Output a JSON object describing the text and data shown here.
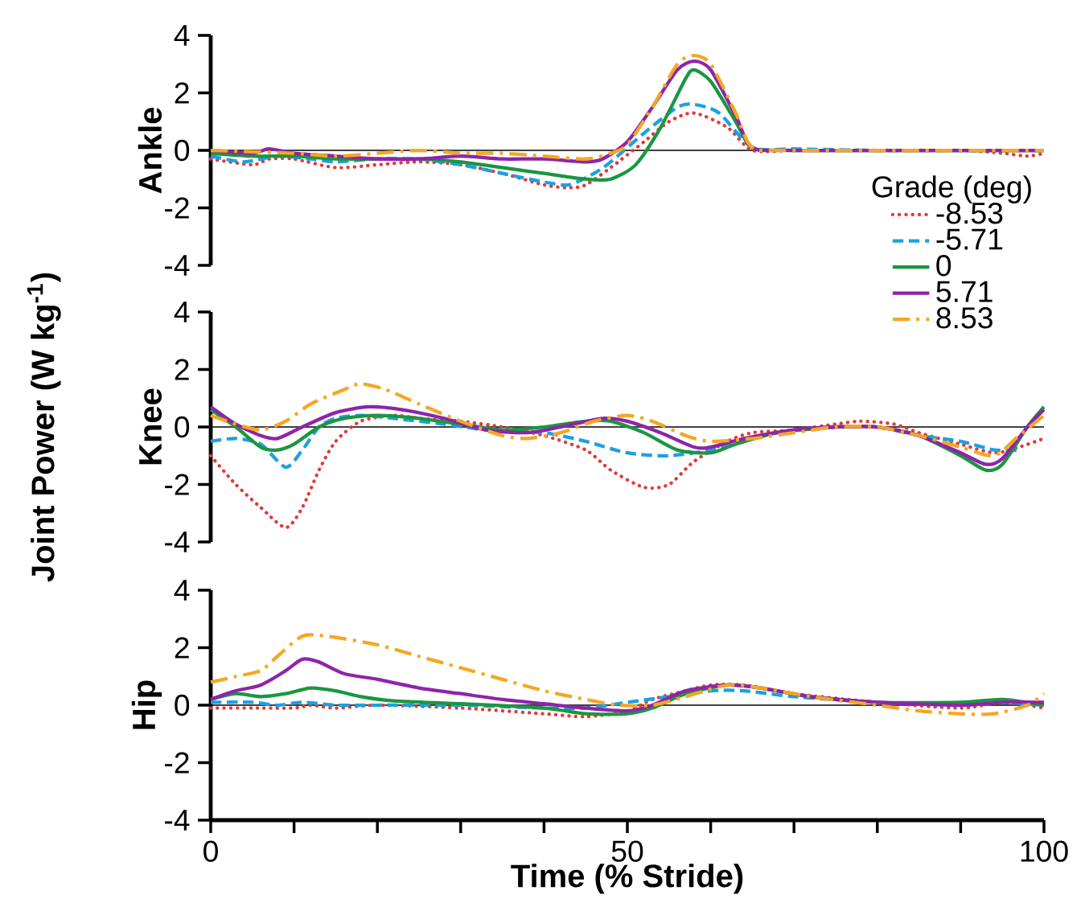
{
  "chart_data": [
    {
      "type": "line",
      "ylabel": "Ankle",
      "legend_title": "Grade (deg)",
      "legend": "right",
      "xlim": [
        0,
        100
      ],
      "ylim": [
        -4,
        4
      ],
      "yticks": [
        -4,
        -2,
        0,
        2,
        4
      ],
      "tick_labels": "y",
      "ref_lines": [
        {
          "axis": "y",
          "value": 0,
          "color": "#000000"
        }
      ],
      "series": [
        {
          "name": "-8.53",
          "color": "#e03a3a",
          "line_style": "dotted",
          "x": [
            0,
            5,
            7,
            10,
            15,
            20,
            25,
            30,
            35,
            40,
            43,
            45,
            48,
            52,
            55,
            58,
            62,
            65,
            70,
            80,
            90,
            95,
            98,
            100
          ],
          "values": [
            -0.3,
            -0.5,
            -0.3,
            -0.3,
            -0.6,
            -0.5,
            -0.4,
            -0.5,
            -0.8,
            -1.2,
            -1.3,
            -1.2,
            -0.6,
            0.3,
            1.0,
            1.3,
            0.8,
            0,
            0,
            0,
            0,
            -0.1,
            -0.2,
            -0.1
          ]
        },
        {
          "name": "-5.71",
          "color": "#1ba1e2",
          "line_style": "dashed",
          "x": [
            0,
            4,
            8,
            12,
            15,
            20,
            25,
            30,
            35,
            40,
            43,
            46,
            48,
            52,
            56,
            58,
            61,
            65,
            70,
            80,
            90,
            100
          ],
          "values": [
            -0.2,
            -0.4,
            -0.2,
            -0.3,
            -0.4,
            -0.3,
            -0.3,
            -0.5,
            -0.8,
            -1.1,
            -1.2,
            -0.8,
            -0.4,
            0.6,
            1.5,
            1.6,
            1.3,
            0.1,
            0.05,
            0,
            0,
            0
          ]
        },
        {
          "name": "0",
          "color": "#1a9641",
          "line_style": "solid",
          "x": [
            0,
            5,
            10,
            15,
            20,
            25,
            30,
            35,
            40,
            45,
            48,
            51,
            54,
            57,
            58,
            60,
            63,
            65,
            70,
            100
          ],
          "values": [
            -0.1,
            -0.2,
            -0.2,
            -0.3,
            -0.3,
            -0.3,
            -0.4,
            -0.6,
            -0.8,
            -1.0,
            -1.0,
            -0.5,
            0.8,
            2.5,
            2.8,
            2.4,
            1.0,
            0.1,
            0,
            0
          ]
        },
        {
          "name": "5.71",
          "color": "#8e24aa",
          "line_style": "solid",
          "x": [
            0,
            5,
            7,
            10,
            15,
            20,
            25,
            30,
            35,
            40,
            45,
            47,
            50,
            53,
            56,
            58,
            60,
            63,
            65,
            70,
            100
          ],
          "values": [
            0,
            -0.1,
            0.05,
            -0.1,
            -0.2,
            -0.3,
            -0.3,
            -0.2,
            -0.3,
            -0.3,
            -0.4,
            -0.3,
            0.3,
            1.5,
            2.8,
            3.1,
            2.8,
            1.2,
            0.1,
            0,
            0
          ]
        },
        {
          "name": "8.53",
          "color": "#f5a623",
          "line_style": "dashdot",
          "x": [
            0,
            10,
            15,
            20,
            25,
            30,
            35,
            40,
            45,
            48,
            50,
            53,
            56,
            58,
            60,
            63,
            65,
            70,
            100
          ],
          "values": [
            0,
            -0.1,
            -0.2,
            -0.1,
            0,
            -0.1,
            -0.1,
            -0.2,
            -0.3,
            -0.1,
            0.2,
            1.5,
            3.0,
            3.3,
            3.0,
            1.3,
            0.1,
            0,
            0
          ]
        }
      ]
    },
    {
      "type": "line",
      "ylabel": "Knee",
      "annotations": [
        "Joint Power (W kg$^{-1}$)"
      ],
      "xlim": [
        0,
        100
      ],
      "ylim": [
        -4,
        4
      ],
      "yticks": [
        -4,
        -2,
        0,
        2,
        4
      ],
      "tick_labels": "y",
      "ref_lines": [
        {
          "axis": "y",
          "value": 0,
          "color": "#000000"
        }
      ],
      "series": [
        {
          "color": "#e03a3a",
          "line_style": "dotted",
          "x": [
            0,
            3,
            6,
            9,
            11,
            13,
            15,
            18,
            22,
            25,
            30,
            35,
            40,
            45,
            48,
            52,
            55,
            58,
            62,
            65,
            70,
            75,
            78,
            82,
            85,
            90,
            94,
            97,
            100
          ],
          "values": [
            -1.0,
            -2.0,
            -2.8,
            -3.5,
            -2.8,
            -1.5,
            -0.5,
            0.2,
            0.4,
            0.3,
            0.2,
            0,
            -0.3,
            -0.8,
            -1.5,
            -2.1,
            -2.0,
            -1.2,
            -0.5,
            -0.2,
            -0.1,
            0.1,
            0.2,
            0.1,
            -0.2,
            -0.6,
            -0.9,
            -0.7,
            -0.4
          ]
        },
        {
          "color": "#1ba1e2",
          "line_style": "dashed",
          "x": [
            0,
            3,
            6,
            9,
            11,
            13,
            15,
            18,
            22,
            28,
            33,
            40,
            45,
            50,
            55,
            60,
            63,
            68,
            75,
            80,
            85,
            90,
            94,
            97
          ],
          "values": [
            -0.5,
            -0.4,
            -0.6,
            -1.4,
            -0.8,
            0,
            0.3,
            0.4,
            0.3,
            0.1,
            -0.1,
            -0.2,
            -0.5,
            -0.9,
            -1.0,
            -0.8,
            -0.5,
            -0.2,
            0,
            0,
            -0.3,
            -0.5,
            -0.8,
            -0.8
          ]
        },
        {
          "color": "#1a9641",
          "line_style": "solid",
          "x": [
            0,
            3,
            6,
            8,
            10,
            13,
            16,
            20,
            25,
            30,
            35,
            40,
            45,
            48,
            52,
            56,
            60,
            63,
            68,
            75,
            80,
            85,
            90,
            93,
            95,
            98,
            100
          ],
          "values": [
            0.6,
            0,
            -0.7,
            -0.8,
            -0.6,
            0,
            0.3,
            0.4,
            0.3,
            0.1,
            -0.1,
            0,
            0.2,
            0.2,
            -0.2,
            -0.8,
            -0.9,
            -0.6,
            -0.2,
            0,
            0,
            -0.3,
            -1.0,
            -1.5,
            -1.3,
            0,
            0.7
          ]
        },
        {
          "color": "#8e24aa",
          "line_style": "solid",
          "x": [
            0,
            3,
            6,
            8,
            11,
            15,
            19,
            23,
            28,
            33,
            38,
            42,
            47,
            50,
            54,
            58,
            60,
            64,
            70,
            75,
            80,
            85,
            90,
            93,
            95,
            98,
            100
          ],
          "values": [
            0.7,
            0.1,
            -0.3,
            -0.4,
            0,
            0.5,
            0.7,
            0.6,
            0.3,
            -0.1,
            -0.2,
            0,
            0.3,
            0.2,
            -0.2,
            -0.7,
            -0.7,
            -0.4,
            -0.1,
            0,
            0,
            -0.3,
            -0.9,
            -1.3,
            -1.1,
            0,
            0.6
          ]
        },
        {
          "color": "#f5a623",
          "line_style": "dashdot",
          "x": [
            0,
            3,
            6,
            9,
            12,
            16,
            18,
            21,
            25,
            30,
            35,
            38,
            42,
            46,
            50,
            53,
            57,
            60,
            65,
            70,
            75,
            80,
            85,
            90,
            94,
            97,
            100
          ],
          "values": [
            0.4,
            0.1,
            -0.1,
            0.2,
            0.8,
            1.3,
            1.5,
            1.3,
            0.8,
            0.2,
            -0.3,
            -0.4,
            -0.2,
            0.2,
            0.4,
            0.2,
            -0.3,
            -0.5,
            -0.4,
            -0.2,
            0,
            0,
            -0.3,
            -0.7,
            -1.0,
            -0.3,
            0.4
          ]
        }
      ]
    },
    {
      "type": "line",
      "ylabel": "Hip",
      "xlabel": "Time (% Stride)",
      "xlim": [
        0,
        100
      ],
      "ylim": [
        -4,
        4
      ],
      "yticks": [
        -4,
        -2,
        0,
        2,
        4
      ],
      "xticks": [
        0,
        {
          "value": 10,
          "label": null
        },
        {
          "value": 20,
          "label": null
        },
        {
          "value": 30,
          "label": null
        },
        {
          "value": 40,
          "label": null
        },
        50,
        {
          "value": 60,
          "label": null
        },
        {
          "value": 70,
          "label": null
        },
        {
          "value": 80,
          "label": null
        },
        {
          "value": 90,
          "label": null
        },
        100
      ],
      "ref_lines": [
        {
          "axis": "y",
          "value": 0,
          "color": "#000000"
        }
      ],
      "series": [
        {
          "color": "#e03a3a",
          "line_style": "dotted",
          "x": [
            0,
            5,
            10,
            12,
            15,
            20,
            30,
            40,
            45,
            50,
            53,
            57,
            60,
            64,
            70,
            80,
            90,
            95,
            100
          ],
          "values": [
            -0.1,
            -0.1,
            -0.1,
            0,
            -0.1,
            0,
            -0.1,
            -0.3,
            -0.4,
            -0.2,
            0.2,
            0.5,
            0.7,
            0.7,
            0.4,
            0.1,
            -0.1,
            0.1,
            -0.1
          ]
        },
        {
          "color": "#1ba1e2",
          "line_style": "dashed",
          "x": [
            0,
            5,
            8,
            11,
            15,
            20,
            30,
            40,
            45,
            50,
            55,
            60,
            64,
            70,
            80,
            90,
            95,
            100
          ],
          "values": [
            0.1,
            0.1,
            0,
            0.1,
            0,
            0,
            0,
            -0.1,
            -0.1,
            0.1,
            0.3,
            0.5,
            0.5,
            0.3,
            0.1,
            0,
            0.1,
            0
          ]
        },
        {
          "color": "#1a9641",
          "line_style": "solid",
          "x": [
            0,
            3,
            6,
            9,
            12,
            15,
            18,
            22,
            30,
            40,
            45,
            50,
            53,
            57,
            62,
            66,
            72,
            80,
            90,
            95,
            100
          ],
          "values": [
            0.2,
            0.4,
            0.3,
            0.4,
            0.6,
            0.5,
            0.3,
            0.15,
            0.05,
            -0.1,
            -0.3,
            -0.3,
            -0.1,
            0.4,
            0.7,
            0.6,
            0.3,
            0.1,
            0.1,
            0.2,
            0
          ]
        },
        {
          "color": "#8e24aa",
          "line_style": "solid",
          "x": [
            0,
            3,
            6,
            9,
            11,
            13,
            16,
            20,
            25,
            30,
            35,
            40,
            45,
            50,
            53,
            57,
            62,
            66,
            72,
            80,
            90,
            95,
            100
          ],
          "values": [
            0.2,
            0.5,
            0.7,
            1.2,
            1.6,
            1.5,
            1.1,
            0.9,
            0.6,
            0.4,
            0.2,
            0.05,
            -0.1,
            -0.2,
            0,
            0.5,
            0.7,
            0.6,
            0.3,
            0.1,
            0,
            0.1,
            0.1
          ]
        },
        {
          "color": "#f5a623",
          "line_style": "dashdot",
          "x": [
            0,
            3,
            6,
            8,
            11,
            14,
            20,
            25,
            30,
            35,
            40,
            45,
            49,
            53,
            57,
            62,
            66,
            72,
            80,
            85,
            90,
            94,
            98,
            100
          ],
          "values": [
            0.8,
            1.0,
            1.2,
            1.7,
            2.4,
            2.4,
            2.1,
            1.7,
            1.3,
            0.9,
            0.5,
            0.2,
            0,
            0,
            0.3,
            0.7,
            0.6,
            0.3,
            0,
            -0.2,
            -0.3,
            -0.3,
            0,
            0.4
          ]
        }
      ]
    }
  ]
}
